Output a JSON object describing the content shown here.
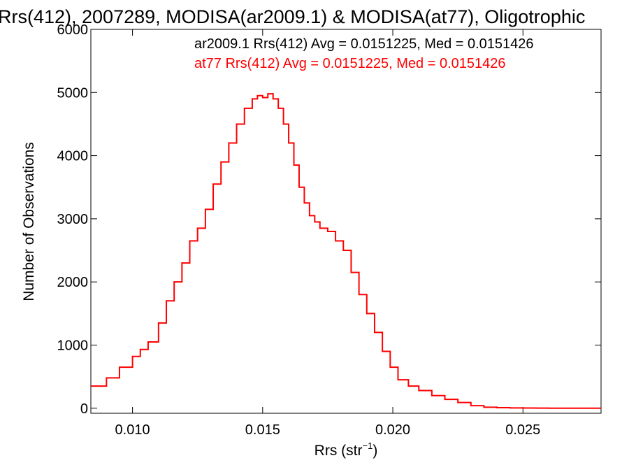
{
  "chart_data": {
    "type": "line",
    "title": "Rrs(412), 2007289, MODISA(ar2009.1) & MODISA(at77), Oligotrophic",
    "xlabel_base": "Rrs (str",
    "xlabel_sup": "−1",
    "xlabel_close": ")",
    "ylabel": "Number of Observations",
    "xlim": [
      0.0084,
      0.028
    ],
    "ylim": [
      -80,
      6000
    ],
    "x_ticks": [
      {
        "value": 0.01,
        "label": "0.010"
      },
      {
        "value": 0.015,
        "label": "0.015"
      },
      {
        "value": 0.02,
        "label": "0.020"
      },
      {
        "value": 0.025,
        "label": "0.025"
      }
    ],
    "y_ticks": [
      {
        "value": 0,
        "label": "0"
      },
      {
        "value": 1000,
        "label": "1000"
      },
      {
        "value": 2000,
        "label": "2000"
      },
      {
        "value": 3000,
        "label": "3000"
      },
      {
        "value": 4000,
        "label": "4000"
      },
      {
        "value": 5000,
        "label": "5000"
      },
      {
        "value": 6000,
        "label": "6000"
      }
    ],
    "annotations": [
      {
        "text": "ar2009.1 Rrs(412) Avg = 0.0151225, Med = 0.0151426",
        "color": "#000000"
      },
      {
        "text": "at77 Rrs(412) Avg = 0.0151225, Med = 0.0151426",
        "color": "#ff0000"
      }
    ],
    "series": [
      {
        "name": "ar2009.1",
        "color": "#000000",
        "x": [
          0.0084,
          0.009,
          0.0095,
          0.01,
          0.0103,
          0.0106,
          0.011,
          0.0113,
          0.0116,
          0.0119,
          0.0122,
          0.0125,
          0.0128,
          0.0131,
          0.0134,
          0.0137,
          0.014,
          0.0143,
          0.0146,
          0.0148,
          0.015,
          0.0152,
          0.0154,
          0.0156,
          0.0158,
          0.016,
          0.0162,
          0.0164,
          0.0166,
          0.0168,
          0.017,
          0.0172,
          0.0175,
          0.0178,
          0.0181,
          0.0184,
          0.0187,
          0.019,
          0.0193,
          0.0196,
          0.0199,
          0.0202,
          0.0206,
          0.021,
          0.0215,
          0.022,
          0.0225,
          0.023,
          0.0235,
          0.024,
          0.0245,
          0.025,
          0.0255,
          0.026,
          0.027,
          0.028
        ],
        "y": [
          350,
          480,
          650,
          820,
          930,
          1050,
          1350,
          1700,
          2000,
          2300,
          2650,
          2850,
          3150,
          3550,
          3900,
          4200,
          4500,
          4750,
          4900,
          4950,
          4920,
          4980,
          4900,
          4750,
          4500,
          4200,
          3850,
          3500,
          3250,
          3050,
          2950,
          2850,
          2800,
          2650,
          2500,
          2150,
          1800,
          1500,
          1200,
          900,
          650,
          450,
          350,
          280,
          200,
          140,
          90,
          40,
          15,
          8,
          5,
          3,
          2,
          0,
          0,
          0
        ],
        "visible": false
      },
      {
        "name": "at77",
        "color": "#ff0000",
        "x": [
          0.0084,
          0.009,
          0.0095,
          0.01,
          0.0103,
          0.0106,
          0.011,
          0.0113,
          0.0116,
          0.0119,
          0.0122,
          0.0125,
          0.0128,
          0.0131,
          0.0134,
          0.0137,
          0.014,
          0.0143,
          0.0146,
          0.0148,
          0.015,
          0.0152,
          0.0154,
          0.0156,
          0.0158,
          0.016,
          0.0162,
          0.0164,
          0.0166,
          0.0168,
          0.017,
          0.0172,
          0.0175,
          0.0178,
          0.0181,
          0.0184,
          0.0187,
          0.019,
          0.0193,
          0.0196,
          0.0199,
          0.0202,
          0.0206,
          0.021,
          0.0215,
          0.022,
          0.0225,
          0.023,
          0.0235,
          0.024,
          0.0245,
          0.025,
          0.0255,
          0.026,
          0.027,
          0.028
        ],
        "y": [
          350,
          480,
          650,
          820,
          930,
          1050,
          1350,
          1700,
          2000,
          2300,
          2650,
          2850,
          3150,
          3550,
          3900,
          4200,
          4500,
          4750,
          4900,
          4950,
          4920,
          4980,
          4900,
          4750,
          4500,
          4200,
          3850,
          3500,
          3250,
          3050,
          2950,
          2850,
          2800,
          2650,
          2500,
          2150,
          1800,
          1500,
          1200,
          900,
          650,
          450,
          350,
          280,
          200,
          140,
          90,
          40,
          15,
          8,
          5,
          3,
          2,
          0,
          0,
          0
        ]
      }
    ]
  }
}
